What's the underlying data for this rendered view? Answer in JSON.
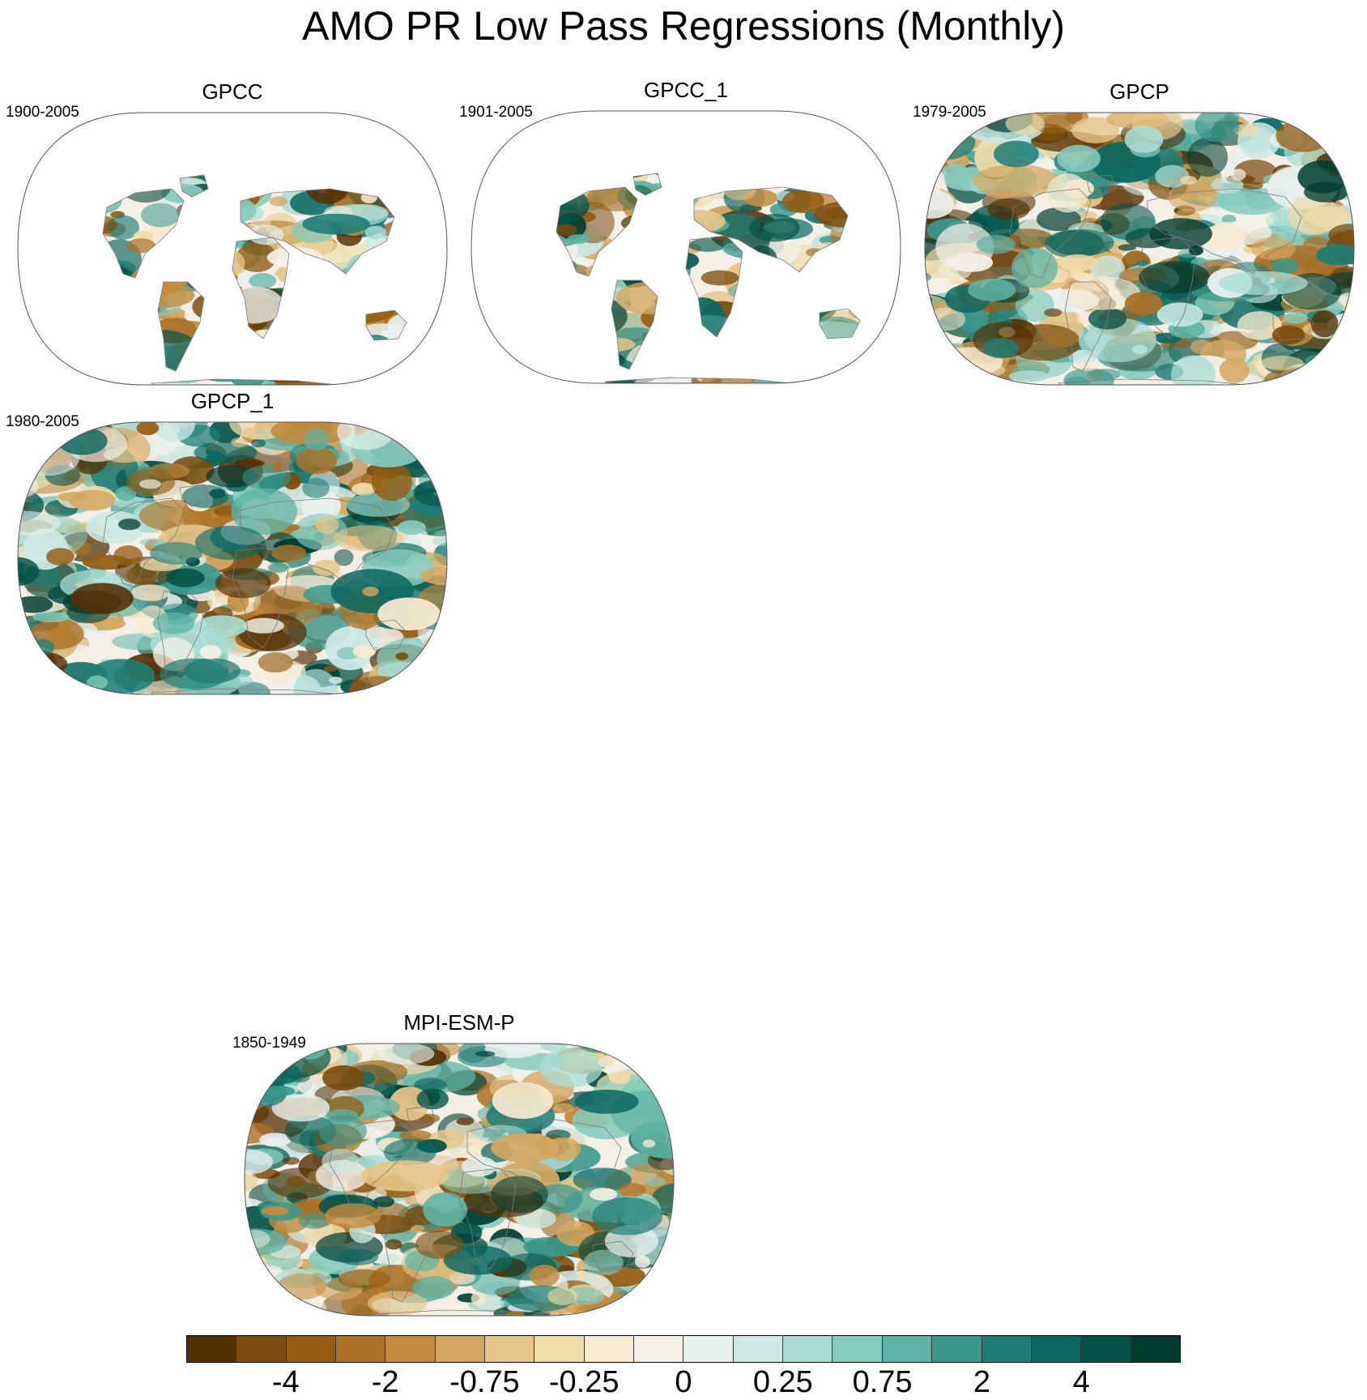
{
  "title": "AMO PR Low Pass Regressions (Monthly)",
  "panels": [
    {
      "name": "GPCC",
      "period": "1900-2005",
      "coverage": "land"
    },
    {
      "name": "GPCC_1",
      "period": "1901-2005",
      "coverage": "land"
    },
    {
      "name": "GPCP",
      "period": "1979-2005",
      "coverage": "global"
    },
    {
      "name": "GPCP_1",
      "period": "1980-2005",
      "coverage": "global"
    },
    {
      "name": "MPI-ESM-P",
      "period": "1850-1949",
      "coverage": "global"
    }
  ],
  "colorbar": {
    "labels": [
      "-4",
      "-2",
      "-0.75",
      "-0.25",
      "0",
      "0.25",
      "0.75",
      "2",
      "4"
    ],
    "colors": [
      "#543005",
      "#7a4b0c",
      "#935c12",
      "#ac7126",
      "#c38b3e",
      "#d5a862",
      "#e6c68a",
      "#f0dcaa",
      "#f6ead0",
      "#f4f0e8",
      "#e8f1ef",
      "#cde9e4",
      "#a9ddd4",
      "#85cbbd",
      "#5fb4a5",
      "#3a978c",
      "#1f7d75",
      "#0b6760",
      "#035248",
      "#013c30"
    ]
  }
}
